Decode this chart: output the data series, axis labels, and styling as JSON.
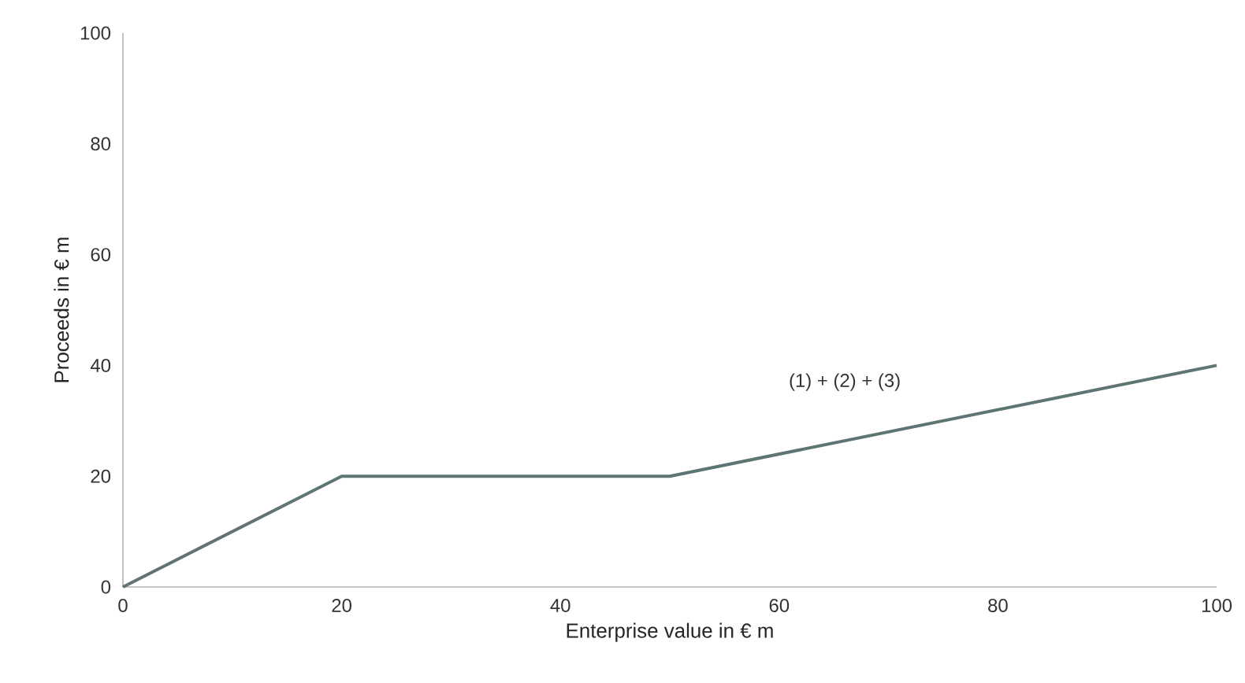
{
  "chart_data": {
    "type": "line",
    "xlabel": "Enterprise value in € m",
    "ylabel": "Proceeds in € m",
    "x": [
      0,
      20,
      50,
      100
    ],
    "series": [
      {
        "color": "#5f7574",
        "values": [
          0,
          20,
          20,
          40
        ]
      }
    ],
    "xlim": [
      0,
      100
    ],
    "xticks": [
      0,
      20,
      40,
      60,
      80,
      100
    ],
    "ylim": [
      0,
      100
    ],
    "yticks": [
      0,
      20,
      40,
      60,
      80,
      100
    ],
    "annotations": [
      "(1) + (2) + (3)"
    ],
    "grid": false,
    "marker": "none",
    "line_style": "solid"
  }
}
